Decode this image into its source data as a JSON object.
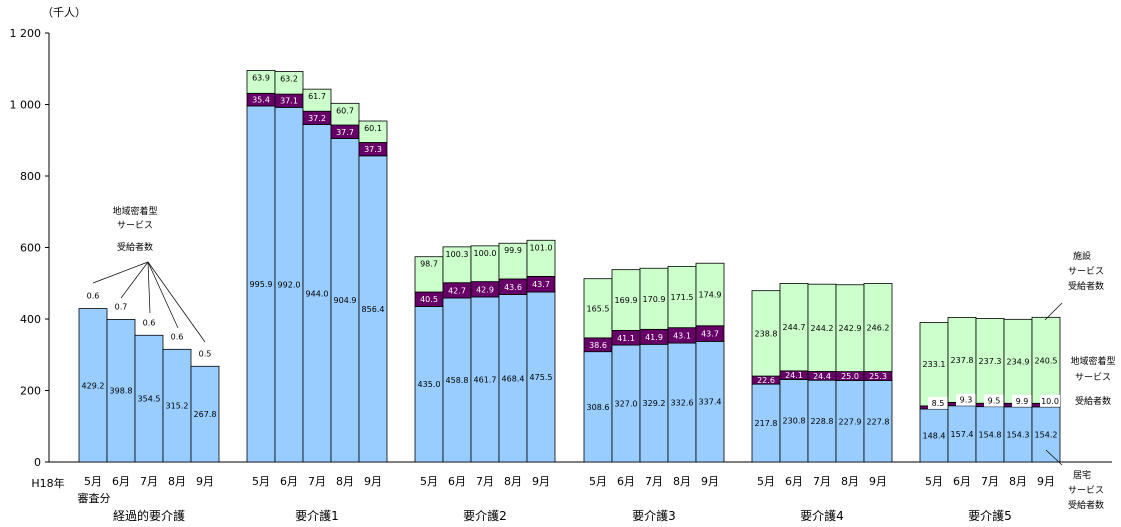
{
  "chart_data": {
    "type": "bar",
    "stacked": true,
    "unit": "（千人）",
    "ylim": [
      0,
      1200
    ],
    "yticks": [
      0,
      200,
      400,
      600,
      800,
      1000,
      1200
    ],
    "ytick_labels": [
      "0",
      "200",
      "400",
      "600",
      "800",
      "1 000",
      "1 200"
    ],
    "grid": false,
    "axis_prefix": [
      "H18年",
      "審査分"
    ],
    "series": [
      {
        "name": "居宅サービス受給者数",
        "color": "#99CCFF"
      },
      {
        "name": "地域密着型サービス受給者数",
        "color": "#660066"
      },
      {
        "name": "施設サービス受給者数",
        "color": "#CCFFCC"
      }
    ],
    "groups": [
      {
        "name": "経過的要介護",
        "months": [
          "5月",
          "6月",
          "7月",
          "8月",
          "9月"
        ],
        "values": [
          [
            429.2,
            0.6,
            0
          ],
          [
            398.8,
            0.7,
            0
          ],
          [
            354.5,
            0.6,
            0
          ],
          [
            315.2,
            0.6,
            0
          ],
          [
            267.8,
            0.5,
            0
          ]
        ]
      },
      {
        "name": "要介護1",
        "months": [
          "5月",
          "6月",
          "7月",
          "8月",
          "9月"
        ],
        "values": [
          [
            995.9,
            35.4,
            63.9
          ],
          [
            992.0,
            37.1,
            63.2
          ],
          [
            944.0,
            37.2,
            61.7
          ],
          [
            904.9,
            37.7,
            60.7
          ],
          [
            856.4,
            37.3,
            60.1
          ]
        ]
      },
      {
        "name": "要介護2",
        "months": [
          "5月",
          "6月",
          "7月",
          "8月",
          "9月"
        ],
        "values": [
          [
            435.0,
            40.5,
            98.7
          ],
          [
            458.8,
            42.7,
            100.3
          ],
          [
            461.7,
            42.9,
            100.0
          ],
          [
            468.4,
            43.6,
            99.9
          ],
          [
            475.5,
            43.7,
            101.0
          ]
        ]
      },
      {
        "name": "要介護3",
        "months": [
          "5月",
          "6月",
          "7月",
          "8月",
          "9月"
        ],
        "values": [
          [
            308.6,
            38.6,
            165.5
          ],
          [
            327.0,
            41.1,
            169.9
          ],
          [
            329.2,
            41.9,
            170.9
          ],
          [
            332.6,
            43.1,
            171.5
          ],
          [
            337.4,
            43.7,
            174.9
          ]
        ]
      },
      {
        "name": "要介護4",
        "months": [
          "5月",
          "6月",
          "7月",
          "8月",
          "9月"
        ],
        "values": [
          [
            217.8,
            22.6,
            238.8
          ],
          [
            230.8,
            24.1,
            244.7
          ],
          [
            228.8,
            24.4,
            244.2
          ],
          [
            227.9,
            25.0,
            242.9
          ],
          [
            227.8,
            25.3,
            246.2
          ]
        ]
      },
      {
        "name": "要介護5",
        "months": [
          "5月",
          "6月",
          "7月",
          "8月",
          "9月"
        ],
        "values": [
          [
            148.4,
            8.5,
            233.1
          ],
          [
            157.4,
            9.3,
            237.8
          ],
          [
            154.8,
            9.5,
            237.3
          ],
          [
            154.3,
            9.9,
            234.9
          ],
          [
            154.2,
            10.0,
            240.5
          ]
        ]
      }
    ],
    "annotations": {
      "left_note": [
        "地域密着型",
        "サービス",
        "受給者数"
      ],
      "right_shisetsu": [
        "施設",
        "サービス",
        "受給者数"
      ],
      "right_chiiki": [
        "地域密着型",
        "サービス"
      ],
      "right_chiiki2": "受給者数",
      "right_kyotaku": [
        "居宅",
        "サービス",
        "受給者数"
      ]
    }
  }
}
